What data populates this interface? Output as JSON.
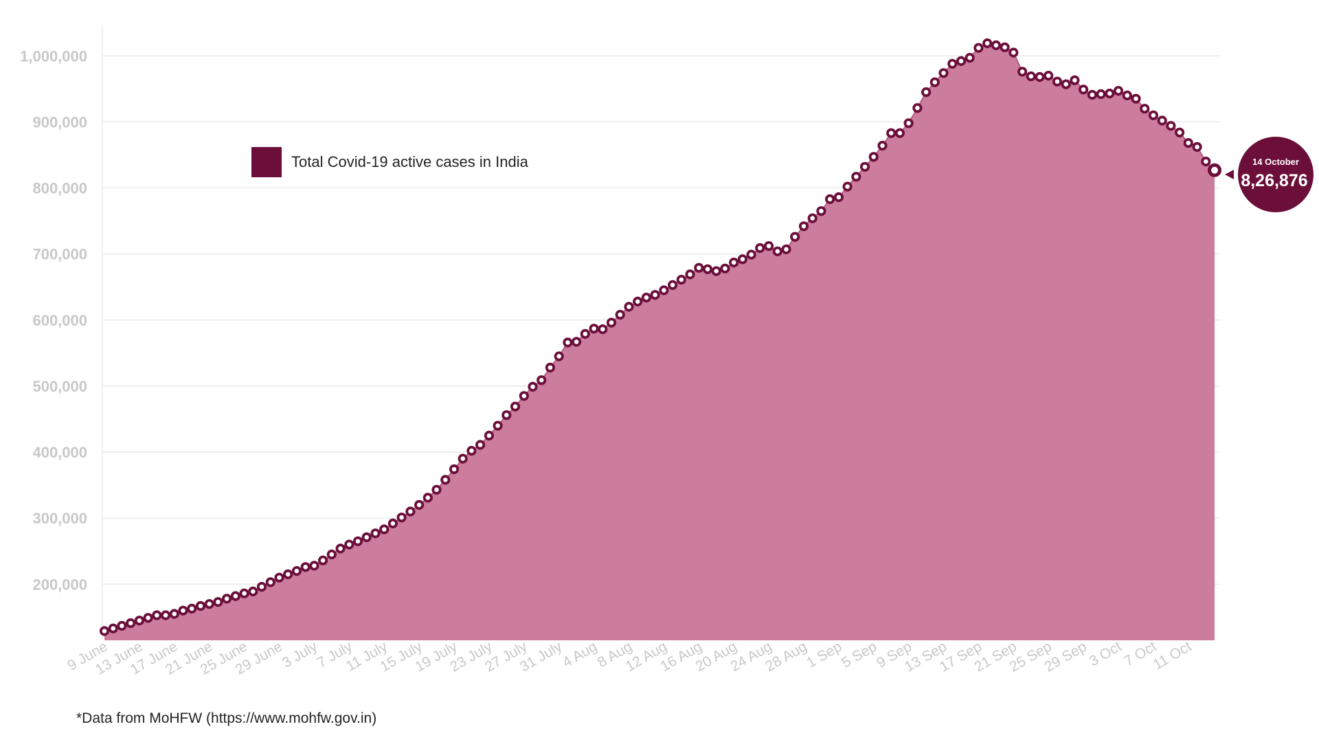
{
  "chart_data": {
    "type": "area",
    "title": "",
    "xlabel": "",
    "ylabel": "",
    "ylim": [
      115000,
      1045000
    ],
    "yticks": [
      200000,
      300000,
      400000,
      500000,
      600000,
      700000,
      800000,
      900000,
      1000000
    ],
    "ytick_labels": [
      "200,000",
      "300,000",
      "400,000",
      "500,000",
      "600,000",
      "700,000",
      "800,000",
      "900,000",
      "1,000,000"
    ],
    "x_tick_labels": [
      "9 June",
      "13 June",
      "17 June",
      "21 June",
      "25 June",
      "29 June",
      "3 July",
      "7 July",
      "11 July",
      "15 July",
      "19 July",
      "23 July",
      "27 July",
      "31 July",
      "4 Aug",
      "8 Aug",
      "12 Aug",
      "16 Aug",
      "20 Aug",
      "24 Aug",
      "28 Aug",
      "1 Sep",
      "5 Sep",
      "9 Sep",
      "13 Sep",
      "17 Sep",
      "21 Sep",
      "25 Sep",
      "29 Sep",
      "3 Oct",
      "7 Oct",
      "11 Oct"
    ],
    "x_start": "9 June",
    "x_end": "14 October",
    "grid": true,
    "legend_position": "upper-left",
    "series": [
      {
        "name": "Total Covid-19 active cases in India",
        "color": "#6b0f3a",
        "fill": "#cc7d9e",
        "values": [
          129000,
          133000,
          137000,
          141000,
          145000,
          149000,
          153000,
          153000,
          155000,
          160000,
          163000,
          167000,
          170000,
          173000,
          178000,
          182000,
          186000,
          189000,
          196000,
          203000,
          210000,
          215000,
          220000,
          226000,
          228000,
          236000,
          245000,
          254000,
          260000,
          265000,
          271000,
          277000,
          283000,
          292000,
          301000,
          310000,
          320000,
          331000,
          343000,
          358000,
          374000,
          390000,
          402000,
          411000,
          425000,
          440000,
          456000,
          469000,
          485000,
          499000,
          509000,
          528000,
          545000,
          566000,
          567000,
          579000,
          587000,
          586000,
          596000,
          608000,
          620000,
          628000,
          634000,
          638000,
          645000,
          653000,
          661000,
          669000,
          679000,
          677000,
          674000,
          678000,
          687000,
          692000,
          699000,
          709000,
          712000,
          704000,
          707000,
          726000,
          742000,
          754000,
          765000,
          783000,
          786000,
          802000,
          817000,
          832000,
          847000,
          864000,
          883000,
          883000,
          898000,
          921000,
          945000,
          960000,
          974000,
          988000,
          992000,
          997000,
          1012000,
          1019000,
          1016000,
          1013000,
          1005000,
          976000,
          969000,
          968000,
          970000,
          961000,
          957000,
          963000,
          949000,
          941000,
          942000,
          943000,
          947000,
          940000,
          935000,
          920000,
          910000,
          902000,
          894000,
          884000,
          868000,
          862000,
          840000,
          826876
        ]
      }
    ],
    "annotation": {
      "date": "14 October",
      "value_label": "8,26,876",
      "color": "#6b0f3a"
    }
  },
  "source_note": "*Data from MoHFW (https://www.mohfw.gov.in)"
}
